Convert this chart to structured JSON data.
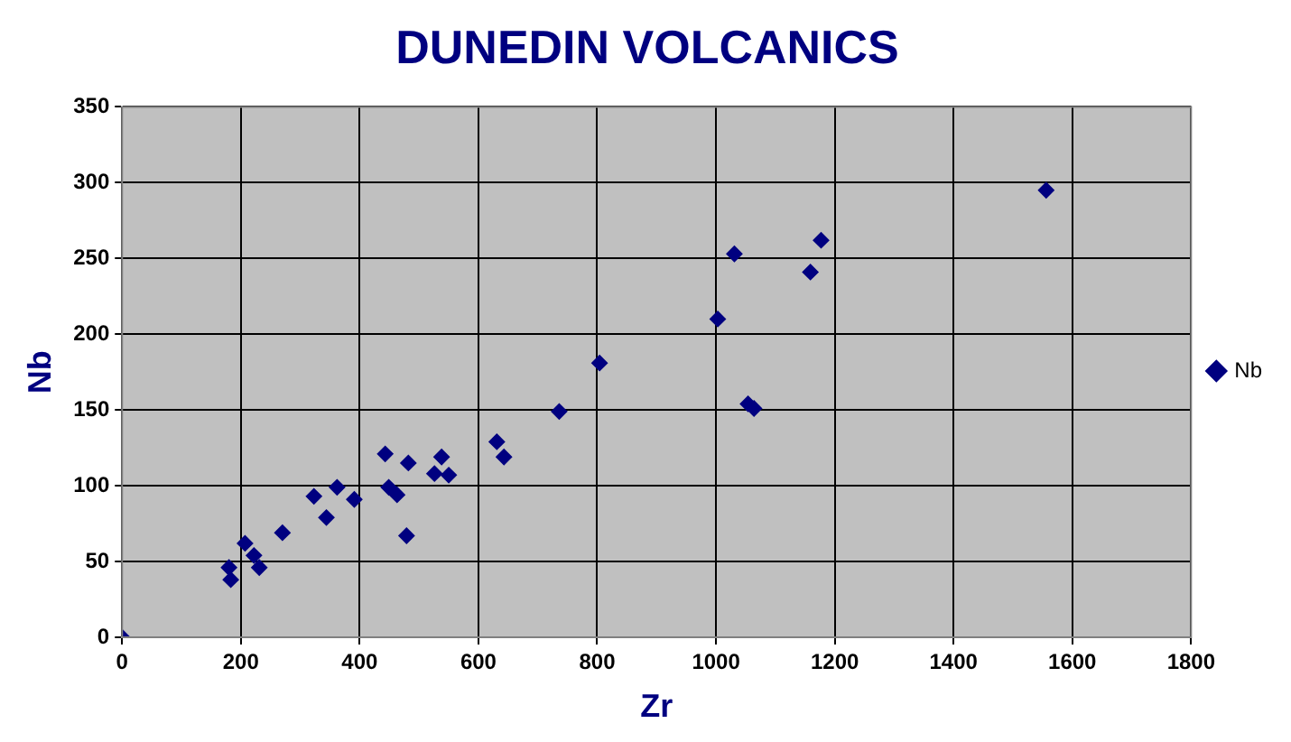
{
  "chart_data": {
    "type": "scatter",
    "title": "DUNEDIN VOLCANICS",
    "xlabel": "Zr",
    "ylabel": "Nb",
    "xlim": [
      0,
      1800
    ],
    "xticks": [
      0,
      200,
      400,
      600,
      800,
      1000,
      1200,
      1400,
      1600,
      1800
    ],
    "ylim": [
      0,
      350
    ],
    "yticks": [
      0,
      50,
      100,
      150,
      200,
      250,
      300,
      350
    ],
    "grid": true,
    "legend": "right",
    "marker": "diamond",
    "series": [
      {
        "name": "Nb",
        "color": "#000080",
        "x": [
          0,
          180,
          183,
          207,
          222,
          231,
          270,
          323,
          344,
          362,
          391,
          443,
          449,
          463,
          479,
          482,
          526,
          538,
          550,
          631,
          643,
          736,
          804,
          1003,
          1031,
          1054,
          1064,
          1159,
          1177,
          1556
        ],
        "values": [
          0,
          46,
          38,
          62,
          54,
          46,
          69,
          93,
          79,
          99,
          91,
          121,
          99,
          94,
          67,
          115,
          108,
          119,
          107,
          129,
          119,
          149,
          181,
          210,
          253,
          154,
          151,
          241,
          262,
          295
        ]
      }
    ]
  }
}
